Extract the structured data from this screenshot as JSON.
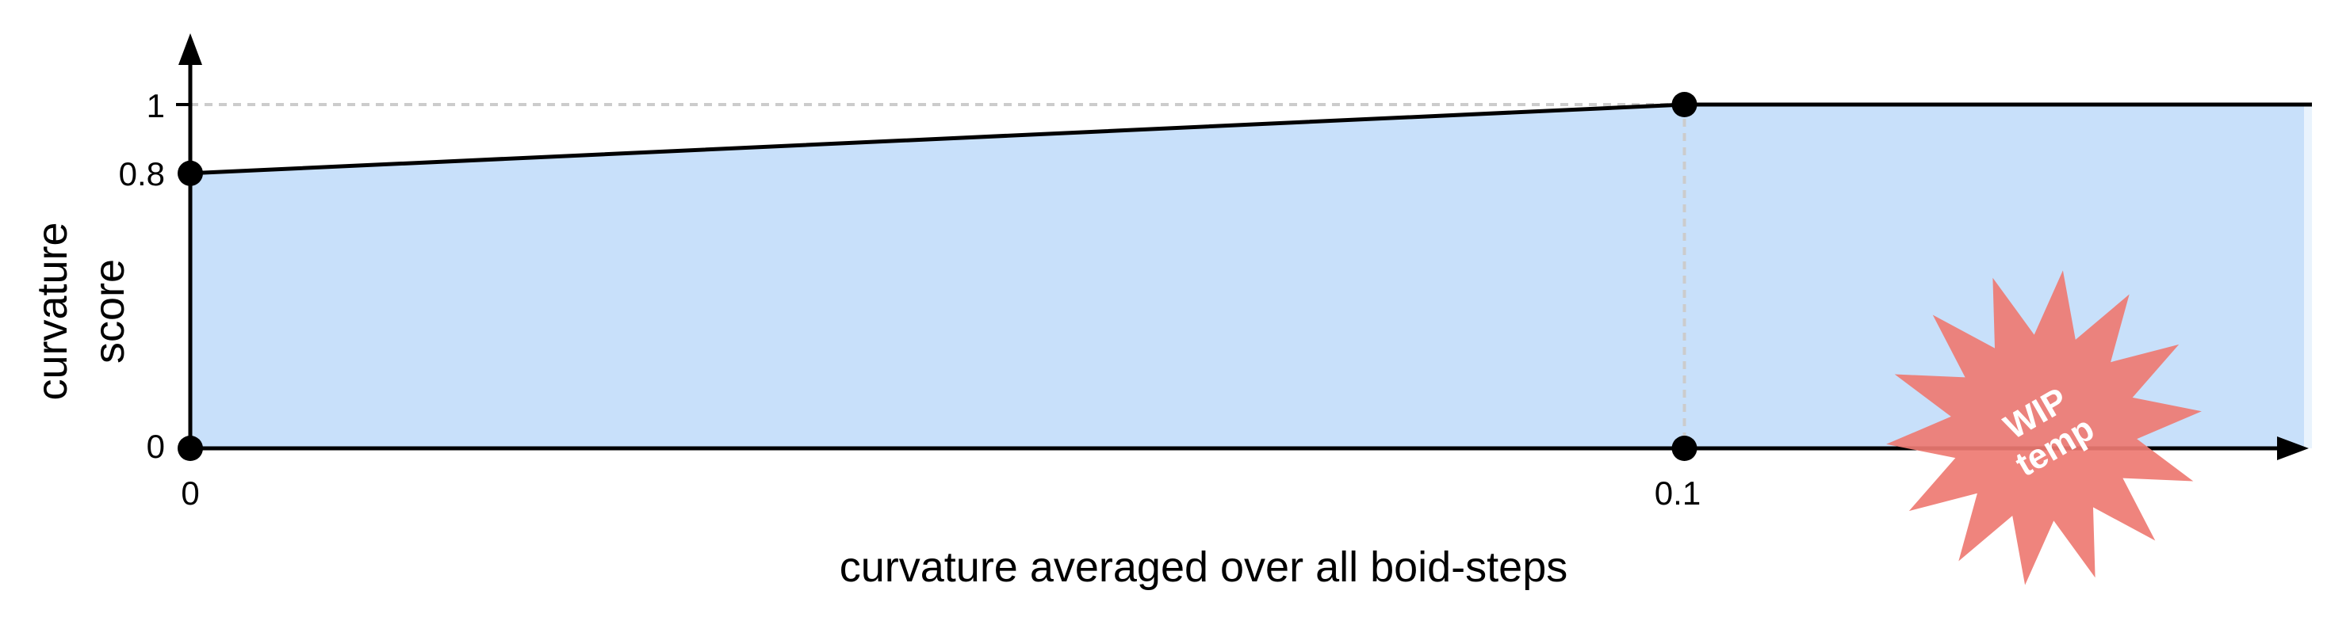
{
  "chart_data": {
    "type": "area",
    "xlabel": "curvature averaged over all boid-steps",
    "ylabel_lines": [
      "curvature",
      "score"
    ],
    "x_ticks": [
      {
        "value": 0,
        "label": "0"
      },
      {
        "value": 0.1,
        "label": "0.1"
      }
    ],
    "y_ticks": [
      {
        "value": 0,
        "label": "0"
      },
      {
        "value": 0.8,
        "label": "0.8"
      },
      {
        "value": 1,
        "label": "1"
      }
    ],
    "xlim": [
      0,
      0.142
    ],
    "ylim": [
      0,
      1
    ],
    "series": [
      {
        "x": [
          0,
          0.1,
          0.142
        ],
        "y": [
          0.8,
          1,
          1
        ]
      }
    ],
    "markers": [
      {
        "x": 0,
        "y": 0
      },
      {
        "x": 0,
        "y": 0.8
      },
      {
        "x": 0.1,
        "y": 1
      },
      {
        "x": 0.1,
        "y": 0
      }
    ],
    "fill_color": "#c8e0fa",
    "line_color": "#000000",
    "guide_color": "#cccccc",
    "stamp": {
      "lines": [
        "WIP",
        "temp"
      ],
      "color": "#ee7a72",
      "text_color": "#ffffff"
    }
  }
}
